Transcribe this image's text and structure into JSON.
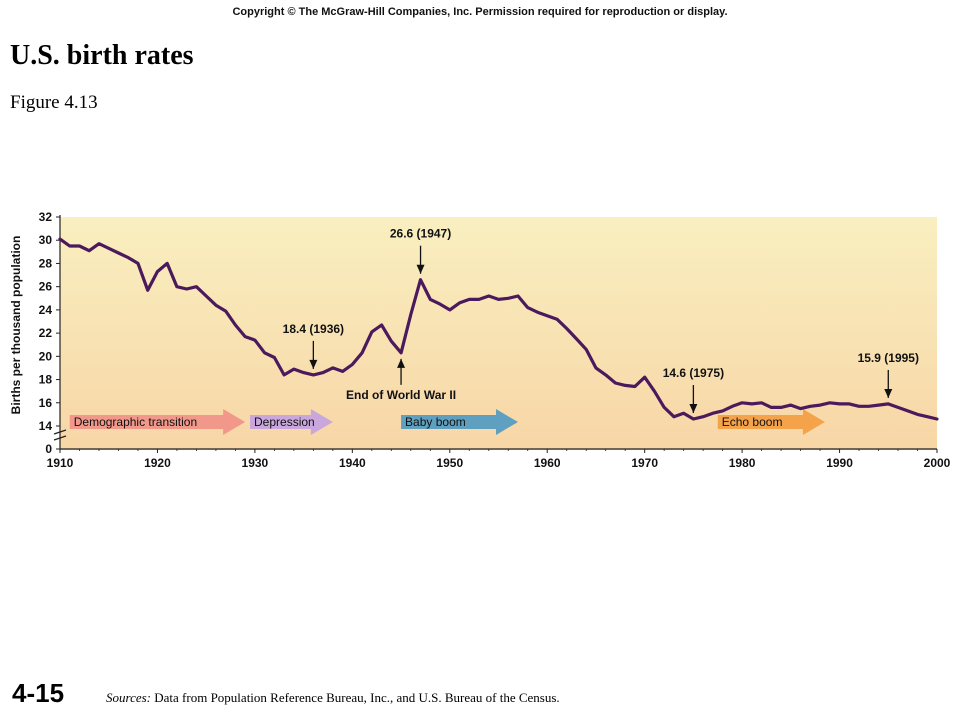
{
  "copyright": "Copyright © The McGraw-Hill Companies, Inc. Permission required for reproduction or display.",
  "title": "U.S. birth rates",
  "subtitle": "Figure 4.13",
  "slide_number": "4-15",
  "sources": {
    "label": "Sources:",
    "text": "Data from Population Reference Bureau, Inc., and U.S. Bureau of the Census."
  },
  "colors": {
    "line": "#4a1a5c",
    "bg_top": "#f9efc0",
    "bg_bottom": "#f8d6a6",
    "demographic_transition": "#f2988a",
    "depression": "#c9a6dc",
    "baby_boom": "#5f9fc0",
    "echo_boom": "#f5a34a"
  },
  "chart_data": {
    "type": "line",
    "title": "",
    "xlabel": "",
    "ylabel": "Births per thousand population",
    "xlim": [
      1910,
      2000
    ],
    "ylim": [
      0,
      32
    ],
    "y_break": [
      0,
      14
    ],
    "xticks": [
      1910,
      1920,
      1930,
      1940,
      1950,
      1960,
      1970,
      1980,
      1990,
      2000
    ],
    "yticks": [
      0,
      14,
      16,
      18,
      20,
      22,
      24,
      26,
      28,
      30,
      32
    ],
    "series": [
      {
        "points": [
          [
            1910,
            30.1
          ],
          [
            1911,
            29.5
          ],
          [
            1912,
            29.5
          ],
          [
            1913,
            29.1
          ],
          [
            1914,
            29.7
          ],
          [
            1915,
            29.3
          ],
          [
            1916,
            28.9
          ],
          [
            1917,
            28.5
          ],
          [
            1918,
            28.0
          ],
          [
            1919,
            25.7
          ],
          [
            1920,
            27.3
          ],
          [
            1921,
            28.0
          ],
          [
            1922,
            26.0
          ],
          [
            1923,
            25.8
          ],
          [
            1924,
            26.0
          ],
          [
            1925,
            25.2
          ],
          [
            1926,
            24.4
          ],
          [
            1927,
            23.9
          ],
          [
            1928,
            22.7
          ],
          [
            1929,
            21.7
          ],
          [
            1930,
            21.4
          ],
          [
            1931,
            20.3
          ],
          [
            1932,
            19.9
          ],
          [
            1933,
            18.4
          ],
          [
            1934,
            18.9
          ],
          [
            1935,
            18.6
          ],
          [
            1936,
            18.4
          ],
          [
            1937,
            18.6
          ],
          [
            1938,
            19.0
          ],
          [
            1939,
            18.7
          ],
          [
            1940,
            19.3
          ],
          [
            1941,
            20.3
          ],
          [
            1942,
            22.1
          ],
          [
            1943,
            22.7
          ],
          [
            1944,
            21.3
          ],
          [
            1945,
            20.3
          ],
          [
            1946,
            23.6
          ],
          [
            1947,
            26.6
          ],
          [
            1948,
            24.9
          ],
          [
            1949,
            24.5
          ],
          [
            1950,
            24.0
          ],
          [
            1951,
            24.6
          ],
          [
            1952,
            24.9
          ],
          [
            1953,
            24.9
          ],
          [
            1954,
            25.2
          ],
          [
            1955,
            24.9
          ],
          [
            1956,
            25.0
          ],
          [
            1957,
            25.2
          ],
          [
            1958,
            24.2
          ],
          [
            1959,
            23.8
          ],
          [
            1960,
            23.5
          ],
          [
            1961,
            23.2
          ],
          [
            1962,
            22.4
          ],
          [
            1963,
            21.5
          ],
          [
            1964,
            20.6
          ],
          [
            1965,
            19.0
          ],
          [
            1966,
            18.4
          ],
          [
            1967,
            17.7
          ],
          [
            1968,
            17.5
          ],
          [
            1969,
            17.4
          ],
          [
            1970,
            18.2
          ],
          [
            1971,
            17.0
          ],
          [
            1972,
            15.6
          ],
          [
            1973,
            14.8
          ],
          [
            1974,
            15.1
          ],
          [
            1975,
            14.6
          ],
          [
            1976,
            14.8
          ],
          [
            1977,
            15.1
          ],
          [
            1978,
            15.3
          ],
          [
            1979,
            15.7
          ],
          [
            1980,
            16.0
          ],
          [
            1981,
            15.9
          ],
          [
            1982,
            16.0
          ],
          [
            1983,
            15.6
          ],
          [
            1984,
            15.6
          ],
          [
            1985,
            15.8
          ],
          [
            1986,
            15.5
          ],
          [
            1987,
            15.7
          ],
          [
            1988,
            15.8
          ],
          [
            1989,
            16.0
          ],
          [
            1990,
            15.9
          ],
          [
            1991,
            15.9
          ],
          [
            1992,
            15.7
          ],
          [
            1993,
            15.7
          ],
          [
            1994,
            15.8
          ],
          [
            1995,
            15.9
          ],
          [
            1996,
            15.6
          ],
          [
            1997,
            15.3
          ],
          [
            1998,
            15.0
          ],
          [
            1999,
            14.8
          ],
          [
            2000,
            14.6
          ]
        ]
      }
    ],
    "annotations": [
      {
        "label": "26.6 (1947)",
        "x": 1947,
        "y": 26.6,
        "arrow": "down"
      },
      {
        "label": "18.4 (1936)",
        "x": 1936,
        "y": 18.4,
        "arrow": "down"
      },
      {
        "label": "End of World War II",
        "x": 1945,
        "y": 20.3,
        "arrow": "up"
      },
      {
        "label": "14.6 (1975)",
        "x": 1975,
        "y": 14.6,
        "arrow": "down"
      },
      {
        "label": "15.9 (1995)",
        "x": 1995,
        "y": 15.9,
        "arrow": "down"
      }
    ],
    "bands": [
      {
        "label": "Demographic transition",
        "start": 1911,
        "end": 1929,
        "color_key": "demographic_transition"
      },
      {
        "label": "Depression",
        "start": 1929.5,
        "end": 1938,
        "color_key": "depression"
      },
      {
        "label": "Baby boom",
        "start": 1945,
        "end": 1957,
        "color_key": "baby_boom"
      },
      {
        "label": "Echo boom",
        "start": 1977.5,
        "end": 1988.5,
        "color_key": "echo_boom"
      }
    ]
  }
}
